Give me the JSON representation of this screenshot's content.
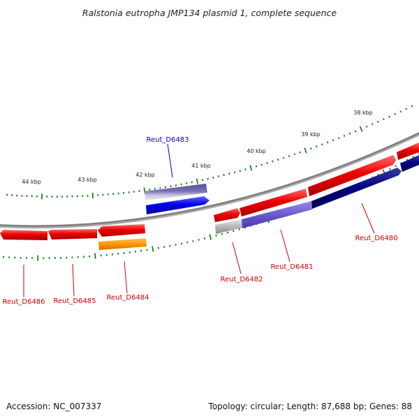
{
  "title": "Ralstonia eutropha JMP134 plasmid 1, complete sequence",
  "footer": {
    "accession": "Accession: NC_007337",
    "topology": "Topology: circular; Length: 87,688 bp; Genes: 88"
  },
  "tick_labels": [
    "44 kbp",
    "43 kbp",
    "42 kbp",
    "41 kbp",
    "40 kbp",
    "39 kbp",
    "38 kbp"
  ],
  "gene_labels": [
    {
      "id": "d6483",
      "text": "Reut_D6483",
      "color": "#0000cc"
    },
    {
      "id": "d6480",
      "text": "Reut_D6480",
      "color": "#cc0000"
    },
    {
      "id": "d6481",
      "text": "Reut_D6481",
      "color": "#cc0000"
    },
    {
      "id": "d6482",
      "text": "Reut_D6482",
      "color": "#cc0000"
    },
    {
      "id": "d6484",
      "text": "Reut_D6484",
      "color": "#cc0000"
    },
    {
      "id": "d6485",
      "text": "Reut_D6485",
      "color": "#cc0000"
    },
    {
      "id": "d6486",
      "text": "Reut_D6486",
      "color": "#cc0000"
    }
  ],
  "colors": {
    "forward_gene": "#ee0000",
    "reverse_gene": "#ee0000",
    "cog_blue": "#0000ee",
    "cog_purple": "#6a5acd",
    "cog_navy": "#000080",
    "cog_orange": "#ff9900",
    "cog_grey": "#aaaaaa",
    "backbone": "#888888",
    "tick": "#007700"
  }
}
